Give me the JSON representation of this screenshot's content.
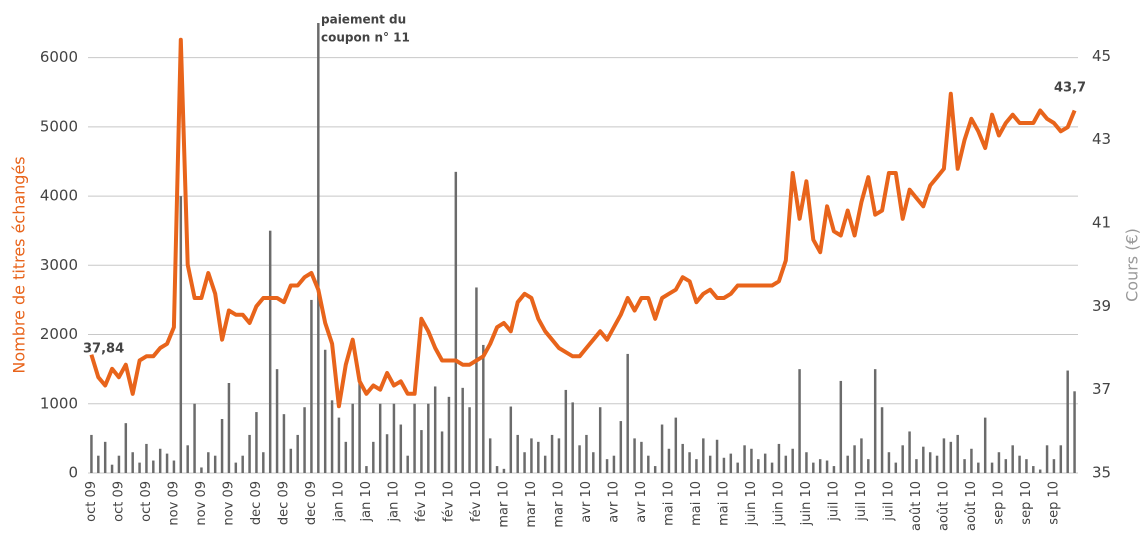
{
  "chart_data": {
    "type": "bar",
    "ylabel": "Nombre de titres échangés",
    "y2label": "Cours (€)",
    "annotations": [
      "paiement du",
      "coupon n° 11",
      "37,84",
      "43,7"
    ],
    "categories": [
      "oct 09",
      null,
      null,
      null,
      "oct 09",
      null,
      null,
      null,
      "oct 09",
      null,
      null,
      null,
      "nov 09",
      null,
      null,
      null,
      "nov 09",
      null,
      null,
      null,
      "nov 09",
      null,
      null,
      null,
      "dec 09",
      null,
      null,
      null,
      "dec 09",
      null,
      null,
      null,
      "dec 09",
      null,
      null,
      null,
      "jan 10",
      null,
      null,
      null,
      "jan 10",
      null,
      null,
      null,
      "jan 10",
      null,
      null,
      null,
      "fév 10",
      null,
      null,
      null,
      "fév 10",
      null,
      null,
      null,
      "fév 10",
      null,
      null,
      null,
      "mar 10",
      null,
      null,
      null,
      "mar 10",
      null,
      null,
      null,
      "mar 10",
      null,
      null,
      null,
      "avr 10",
      null,
      null,
      null,
      "avr 10",
      null,
      null,
      null,
      "avr 10",
      null,
      null,
      null,
      "mai 10",
      null,
      null,
      null,
      "mai 10",
      null,
      null,
      null,
      "mai 10",
      null,
      null,
      null,
      "juin 10",
      null,
      null,
      null,
      "juin 10",
      null,
      null,
      null,
      "juin 10",
      null,
      null,
      null,
      "juil 10",
      null,
      null,
      null,
      "juil 10",
      null,
      null,
      null,
      "juil 10",
      null,
      null,
      null,
      "août 10",
      null,
      null,
      null,
      "août 10",
      null,
      null,
      null,
      "août 10",
      null,
      null,
      null,
      "sep 10",
      null,
      null,
      null,
      "sep 10",
      null,
      null,
      null,
      "sep 10",
      null,
      null,
      null
    ],
    "series": [
      {
        "name": "Nombre de titres échangés",
        "type": "bar",
        "color": "#6b6b6b",
        "values": [
          550,
          250,
          450,
          120,
          250,
          720,
          300,
          150,
          420,
          180,
          350,
          280,
          180,
          4000,
          400,
          1000,
          80,
          300,
          250,
          780,
          1300,
          150,
          250,
          550,
          880,
          300,
          3500,
          1500,
          850,
          350,
          550,
          950,
          2500,
          6500,
          1780,
          1050,
          800,
          450,
          1000,
          1300,
          100,
          450,
          1000,
          560,
          1000,
          700,
          250,
          1000,
          620,
          1000,
          1250,
          600,
          1100,
          4350,
          1230,
          950,
          2680,
          1850,
          500,
          100,
          60,
          960,
          550,
          300,
          500,
          450,
          250,
          550,
          500,
          1200,
          1020,
          400,
          550,
          300,
          950,
          200,
          250,
          750,
          1720,
          500,
          450,
          250,
          100,
          700,
          350,
          800,
          420,
          300,
          200,
          500,
          250,
          480,
          220,
          280,
          150,
          400,
          350,
          200,
          280,
          150,
          420,
          250,
          350,
          1500,
          300,
          150,
          200,
          180,
          100,
          1330,
          250,
          400,
          500,
          200,
          1500,
          950,
          300,
          150,
          400,
          600,
          200,
          380,
          300,
          250,
          500,
          450,
          550,
          200,
          350,
          150,
          800,
          150,
          300,
          200,
          400,
          250,
          200,
          100,
          50,
          400,
          200,
          400,
          1480,
          1180
        ]
      },
      {
        "name": "Cours (€)",
        "type": "line",
        "axis": "y2",
        "color": "#e8641b",
        "values": [
          37.84,
          37.3,
          37.1,
          37.5,
          37.3,
          37.6,
          36.9,
          37.7,
          37.8,
          37.8,
          38.0,
          38.1,
          38.5,
          45.4,
          40.0,
          39.2,
          39.2,
          39.8,
          39.3,
          38.2,
          38.9,
          38.8,
          38.8,
          38.6,
          39.0,
          39.2,
          39.2,
          39.2,
          39.1,
          39.5,
          39.5,
          39.7,
          39.8,
          39.4,
          38.6,
          38.1,
          36.6,
          37.6,
          38.2,
          37.2,
          36.9,
          37.1,
          37.0,
          37.4,
          37.1,
          37.2,
          36.9,
          36.9,
          38.7,
          38.4,
          38.0,
          37.7,
          37.7,
          37.7,
          37.6,
          37.6,
          37.7,
          37.8,
          38.1,
          38.5,
          38.6,
          38.4,
          39.1,
          39.3,
          39.2,
          38.7,
          38.4,
          38.2,
          38.0,
          37.9,
          37.8,
          37.8,
          38.0,
          38.2,
          38.4,
          38.2,
          38.5,
          38.8,
          39.2,
          38.9,
          39.2,
          39.2,
          38.7,
          39.2,
          39.3,
          39.4,
          39.7,
          39.6,
          39.1,
          39.3,
          39.4,
          39.2,
          39.2,
          39.3,
          39.5,
          39.5,
          39.5,
          39.5,
          39.5,
          39.5,
          39.6,
          40.1,
          42.2,
          41.1,
          42.0,
          40.6,
          40.3,
          41.4,
          40.8,
          40.7,
          41.3,
          40.7,
          41.5,
          42.1,
          41.2,
          41.3,
          42.2,
          42.2,
          41.1,
          41.8,
          41.6,
          41.4,
          41.9,
          42.1,
          42.3,
          44.1,
          42.3,
          43.0,
          43.5,
          43.2,
          42.8,
          43.6,
          43.1,
          43.4,
          43.6,
          43.4,
          43.4,
          43.4,
          43.7,
          43.5,
          43.4,
          43.2,
          43.3,
          43.7
        ]
      }
    ],
    "ylim": [
      0,
      6500
    ],
    "yticks": [
      0,
      1000,
      2000,
      3000,
      4000,
      5000,
      6000
    ],
    "y2lim": [
      35,
      45.8
    ],
    "y2ticks": [
      35,
      37,
      39,
      41,
      43,
      45
    ],
    "grid": true
  }
}
